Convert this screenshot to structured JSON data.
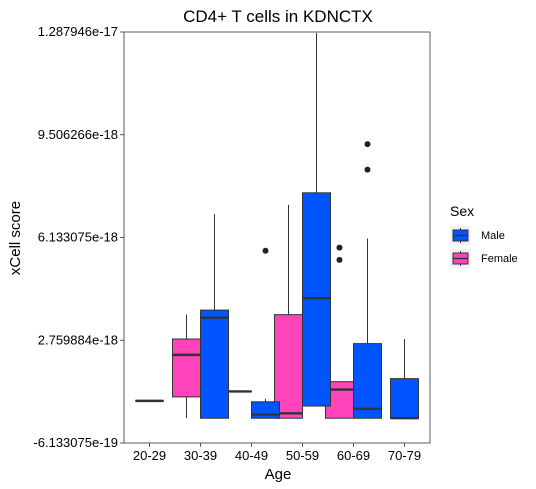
{
  "chart_data": {
    "type": "boxplot",
    "title": "CD4+ T cells in KDNCTX",
    "xlabel": "Age",
    "ylabel": "xCell score",
    "categories": [
      "20-29",
      "30-39",
      "40-49",
      "50-59",
      "60-69",
      "70-79"
    ],
    "y_ticks": [
      -6.133075e-19,
      2.759884e-18,
      6.133075e-18,
      9.506266e-18,
      1.287946e-17
    ],
    "y_tick_labels": [
      "-6.133075e-19",
      "2.759884e-18",
      "6.133075e-18",
      "9.506266e-18",
      "1.287946e-17"
    ],
    "ylim": [
      -6.133075e-19,
      1.287946e-17
    ],
    "legend": {
      "title": "Sex",
      "position": "right",
      "entries": [
        {
          "label": "Male",
          "color": "#0055ff"
        },
        {
          "label": "Female",
          "color": "#ff44bb"
        }
      ]
    },
    "series": [
      {
        "name": "Female",
        "color": "#ff44bb",
        "boxes": [
          {
            "category": "20-29",
            "min": 7.7e-19,
            "q1": 7.7e-19,
            "median": 7.7e-19,
            "q3": 7.7e-19,
            "max": 7.7e-19,
            "outliers": []
          },
          {
            "category": "30-39",
            "min": 2e-19,
            "q1": 9e-19,
            "median": 2.28e-18,
            "q3": 2.8e-18,
            "max": 3.6e-18,
            "outliers": []
          },
          {
            "category": "40-49",
            "min": 1.08e-18,
            "q1": 1.08e-18,
            "median": 1.08e-18,
            "q3": 1.08e-18,
            "max": 1.08e-18,
            "outliers": []
          },
          {
            "category": "50-59",
            "min": 2e-19,
            "q1": 2e-19,
            "median": 3.6e-19,
            "q3": 3.6e-18,
            "max": 7.2e-18,
            "outliers": []
          },
          {
            "category": "60-69",
            "min": 2e-19,
            "q1": 2e-19,
            "median": 1.14e-18,
            "q3": 1.4e-18,
            "max": 1.4e-18,
            "outliers": [
              5.8e-18,
              5.4e-18
            ]
          },
          {
            "category": "70-79",
            "min": null,
            "q1": null,
            "median": null,
            "q3": null,
            "max": null,
            "outliers": []
          }
        ]
      },
      {
        "name": "Male",
        "color": "#0055ff",
        "boxes": [
          {
            "category": "20-29",
            "min": null,
            "q1": null,
            "median": null,
            "q3": null,
            "max": null,
            "outliers": []
          },
          {
            "category": "30-39",
            "min": 2e-19,
            "q1": 2e-19,
            "median": 3.5e-18,
            "q3": 3.75e-18,
            "max": 6.9e-18,
            "outliers": []
          },
          {
            "category": "40-49",
            "min": 2e-19,
            "q1": 2e-19,
            "median": 3.2e-19,
            "q3": 7.4e-19,
            "max": 8.4e-19,
            "outliers": [
              5.7e-18
            ]
          },
          {
            "category": "50-59",
            "min": 6e-19,
            "q1": 6e-19,
            "median": 4.14e-18,
            "q3": 7.6e-18,
            "max": 1.285e-17,
            "outliers": []
          },
          {
            "category": "60-69",
            "min": 2e-19,
            "q1": 2e-19,
            "median": 5.1e-19,
            "q3": 2.65e-18,
            "max": 6.1e-18,
            "outliers": [
              9.2e-18,
              8.36e-18
            ]
          },
          {
            "category": "70-79",
            "min": 2e-19,
            "q1": 2e-19,
            "median": 2e-19,
            "q3": 1.5e-18,
            "max": 2.8e-18,
            "outliers": []
          }
        ]
      }
    ]
  }
}
